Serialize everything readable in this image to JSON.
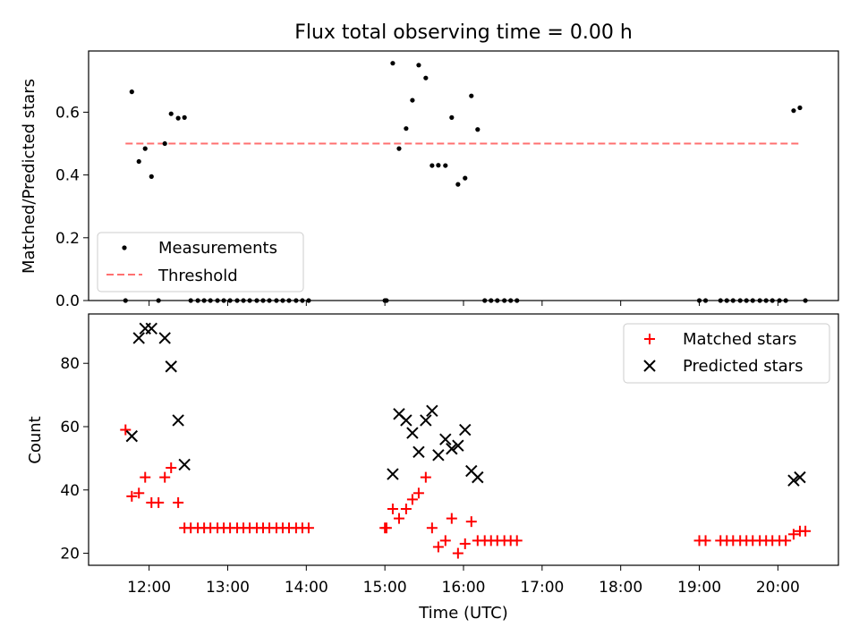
{
  "colors": {
    "measurement": "#000000",
    "threshold": "#ff7070",
    "matched": "#ff0000",
    "predicted": "#000000"
  },
  "chart_data": [
    {
      "type": "scatter",
      "title": "Flux total observing time = 0.00 h",
      "xlabel": "",
      "ylabel": "Matched/Predicted stars",
      "x_unit": "hours UTC",
      "xlim": [
        11.23,
        20.77
      ],
      "ylim": [
        0.0,
        0.795
      ],
      "yticks": [
        0.0,
        0.2,
        0.4,
        0.6
      ],
      "yticklabels": [
        "0.0",
        "0.2",
        "0.4",
        "0.6"
      ],
      "legend": {
        "placement": "lower-left",
        "entries": [
          "Measurements",
          "Threshold"
        ]
      },
      "series": [
        {
          "name": "Measurements",
          "marker": "dot",
          "x": [
            11.78,
            11.87,
            11.95,
            12.03,
            12.2,
            12.28,
            12.37,
            12.45,
            15.1,
            15.18,
            15.27,
            15.35,
            15.43,
            15.52,
            15.6,
            15.68,
            15.77,
            15.85,
            15.93,
            16.02,
            16.1,
            16.18,
            20.2,
            20.28,
            11.7,
            12.12,
            12.53,
            12.62,
            12.7,
            12.78,
            12.87,
            12.95,
            13.03,
            13.12,
            13.2,
            13.28,
            13.37,
            13.45,
            13.53,
            13.62,
            13.7,
            13.78,
            13.87,
            13.95,
            14.03,
            15.0,
            15.02,
            16.27,
            16.35,
            16.43,
            16.52,
            16.6,
            16.68,
            19.0,
            19.08,
            19.27,
            19.35,
            19.43,
            19.52,
            19.6,
            19.68,
            19.77,
            19.85,
            19.93,
            20.02,
            20.1,
            20.35
          ],
          "y": [
            0.665,
            0.443,
            0.484,
            0.395,
            0.5,
            0.595,
            0.581,
            0.583,
            0.756,
            0.484,
            0.548,
            0.638,
            0.75,
            0.709,
            0.43,
            0.431,
            0.43,
            0.583,
            0.37,
            0.39,
            0.652,
            0.545,
            0.605,
            0.614,
            0,
            0,
            0,
            0,
            0,
            0,
            0,
            0,
            0,
            0,
            0,
            0,
            0,
            0,
            0,
            0,
            0,
            0,
            0,
            0,
            0,
            0,
            0,
            0,
            0,
            0,
            0,
            0,
            0,
            0,
            0,
            0,
            0,
            0,
            0,
            0,
            0,
            0,
            0,
            0,
            0,
            0,
            0
          ]
        },
        {
          "name": "Threshold",
          "style": "dashed-line",
          "x": [
            11.7,
            20.28
          ],
          "y": [
            0.5,
            0.5
          ]
        }
      ]
    },
    {
      "type": "scatter",
      "title": "",
      "xlabel": "Time (UTC)",
      "ylabel": "Count",
      "x_unit": "hours UTC",
      "xlim": [
        11.23,
        20.77
      ],
      "ylim": [
        16.2,
        95.6
      ],
      "xticks": [
        12,
        13,
        14,
        15,
        16,
        17,
        18,
        19,
        20
      ],
      "xticklabels": [
        "12:00",
        "13:00",
        "14:00",
        "15:00",
        "16:00",
        "17:00",
        "18:00",
        "19:00",
        "20:00"
      ],
      "yticks": [
        20,
        40,
        60,
        80
      ],
      "yticklabels": [
        "20",
        "40",
        "60",
        "80"
      ],
      "legend": {
        "placement": "top-right",
        "entries": [
          "Matched stars",
          "Predicted stars"
        ]
      },
      "series": [
        {
          "name": "Matched stars",
          "marker": "plus",
          "x": [
            11.7,
            11.78,
            11.87,
            11.95,
            12.03,
            12.12,
            12.2,
            12.28,
            12.37,
            12.45,
            12.53,
            12.62,
            12.7,
            12.78,
            12.87,
            12.95,
            13.03,
            13.12,
            13.2,
            13.28,
            13.37,
            13.45,
            13.53,
            13.62,
            13.7,
            13.78,
            13.87,
            13.95,
            14.03,
            15.0,
            15.02,
            15.1,
            15.18,
            15.27,
            15.35,
            15.43,
            15.52,
            15.6,
            15.68,
            15.77,
            15.85,
            15.93,
            16.02,
            16.1,
            16.18,
            16.27,
            16.35,
            16.43,
            16.52,
            16.6,
            16.68,
            19.0,
            19.08,
            19.27,
            19.35,
            19.43,
            19.52,
            19.6,
            19.68,
            19.77,
            19.85,
            19.93,
            20.02,
            20.1,
            20.2,
            20.28,
            20.35
          ],
          "y": [
            59,
            38,
            39,
            44,
            36,
            36,
            44,
            47,
            36,
            28,
            28,
            28,
            28,
            28,
            28,
            28,
            28,
            28,
            28,
            28,
            28,
            28,
            28,
            28,
            28,
            28,
            28,
            28,
            28,
            28,
            28,
            34,
            31,
            34,
            37,
            39,
            44,
            28,
            22,
            24,
            31,
            20,
            23,
            30,
            24,
            24,
            24,
            24,
            24,
            24,
            24,
            24,
            24,
            24,
            24,
            24,
            24,
            24,
            24,
            24,
            24,
            24,
            24,
            24,
            26,
            27,
            27
          ]
        },
        {
          "name": "Predicted stars",
          "marker": "x",
          "x": [
            11.78,
            11.87,
            11.95,
            12.03,
            12.2,
            12.28,
            12.37,
            12.45,
            15.1,
            15.18,
            15.27,
            15.35,
            15.43,
            15.52,
            15.6,
            15.68,
            15.77,
            15.85,
            15.93,
            16.02,
            16.1,
            16.18,
            20.2,
            20.28
          ],
          "y": [
            57,
            88,
            91,
            91,
            88,
            79,
            62,
            48,
            45,
            64,
            62,
            58,
            52,
            62,
            65,
            51,
            56,
            53,
            54,
            59,
            46,
            44,
            43,
            44
          ]
        }
      ]
    }
  ]
}
